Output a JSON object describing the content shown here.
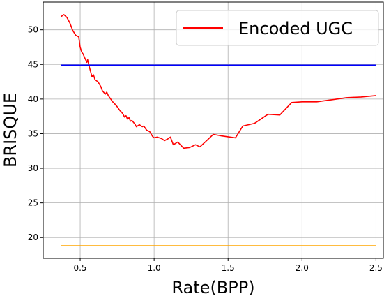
{
  "chart_data": {
    "type": "line",
    "title": "",
    "xlabel": "Rate(BPP)",
    "ylabel": "BRISQUE",
    "xlim": [
      0.25,
      2.55
    ],
    "ylim": [
      17,
      54
    ],
    "xticks": [
      0.5,
      1.0,
      1.5,
      2.0,
      2.5
    ],
    "xtick_labels": [
      "0.5",
      "1.0",
      "1.5",
      "2.0",
      "2.5"
    ],
    "yticks": [
      20,
      25,
      30,
      35,
      40,
      45,
      50
    ],
    "ytick_labels": [
      "20",
      "25",
      "30",
      "35",
      "40",
      "45",
      "50"
    ],
    "grid": true,
    "legend_position": "top-right",
    "series": [
      {
        "name": "Encoded UGC",
        "color": "#ff0000",
        "in_legend": true,
        "x": [
          0.37,
          0.39,
          0.41,
          0.43,
          0.45,
          0.47,
          0.49,
          0.5,
          0.51,
          0.52,
          0.53,
          0.545,
          0.55,
          0.56,
          0.57,
          0.58,
          0.59,
          0.6,
          0.62,
          0.64,
          0.65,
          0.67,
          0.68,
          0.69,
          0.7,
          0.72,
          0.73,
          0.75,
          0.77,
          0.78,
          0.79,
          0.8,
          0.81,
          0.82,
          0.83,
          0.84,
          0.85,
          0.87,
          0.88,
          0.9,
          0.92,
          0.93,
          0.95,
          0.97,
          0.99,
          1.0,
          1.02,
          1.05,
          1.07,
          1.09,
          1.11,
          1.13,
          1.16,
          1.2,
          1.24,
          1.28,
          1.31,
          1.35,
          1.4,
          1.45,
          1.55,
          1.6,
          1.68,
          1.77,
          1.85,
          1.93,
          2.0,
          2.1,
          2.2,
          2.3,
          2.4,
          2.5
        ],
        "y": [
          51.9,
          52.2,
          51.8,
          51.0,
          49.9,
          49.2,
          49.0,
          47.5,
          46.8,
          46.5,
          46.0,
          45.3,
          45.7,
          44.8,
          44.0,
          43.2,
          43.5,
          42.8,
          42.5,
          41.8,
          41.2,
          40.7,
          41.0,
          40.5,
          40.2,
          39.6,
          39.4,
          38.9,
          38.3,
          38.1,
          37.8,
          37.4,
          37.6,
          37.1,
          37.3,
          36.8,
          36.9,
          36.4,
          36.0,
          36.3,
          36.0,
          36.1,
          35.5,
          35.3,
          34.6,
          34.4,
          34.5,
          34.3,
          34.0,
          34.2,
          34.5,
          33.4,
          33.8,
          32.9,
          33.0,
          33.4,
          33.1,
          33.9,
          34.9,
          34.7,
          34.4,
          36.1,
          36.5,
          37.8,
          37.7,
          39.5,
          39.6,
          39.6,
          39.9,
          40.2,
          40.3,
          40.5
        ]
      },
      {
        "name": "",
        "color": "#0000ff",
        "in_legend": false,
        "x": [
          0.37,
          2.5
        ],
        "y": [
          44.9,
          44.9
        ]
      },
      {
        "name": "",
        "color": "#ffa500",
        "in_legend": false,
        "x": [
          0.37,
          2.5
        ],
        "y": [
          18.8,
          18.8
        ]
      }
    ]
  }
}
